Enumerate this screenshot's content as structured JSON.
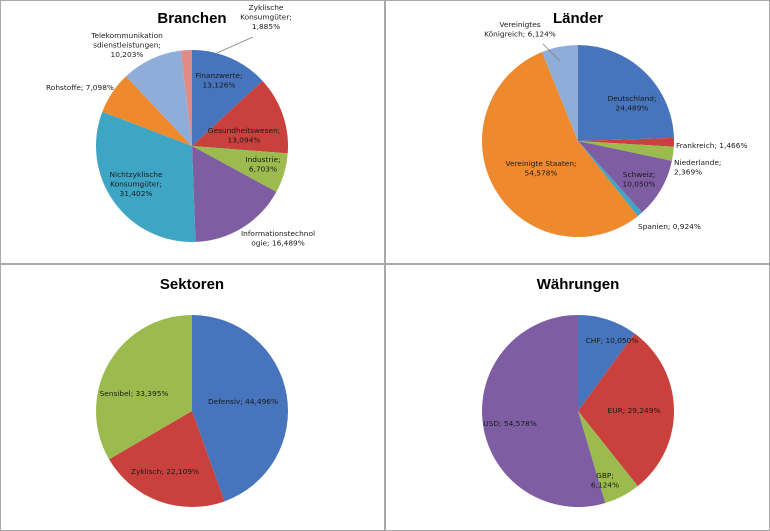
{
  "colors": {
    "blue": "#4674bd",
    "red": "#c9403c",
    "green": "#9bbb4e",
    "purple": "#7f5da3",
    "teal": "#3fa5c4",
    "orange": "#ef892e",
    "lightblue": "#8fadd9",
    "pink": "#df8c89"
  },
  "chart_data": [
    {
      "type": "pie",
      "title": "Branchen",
      "slices": [
        {
          "name": "Finanzwerte",
          "value": 13.126,
          "label": [
            "Finanzwerte;",
            "13,126%"
          ],
          "color": "#4674bd"
        },
        {
          "name": "Gesundheitswesen",
          "value": 13.094,
          "label": [
            "Gesundheitswesen;",
            "13,094%"
          ],
          "color": "#c9403c"
        },
        {
          "name": "Industrie",
          "value": 6.703,
          "label": [
            "Industrie;",
            "6,703%"
          ],
          "color": "#9bbb4e"
        },
        {
          "name": "Informationstechnologie",
          "value": 16.489,
          "label": [
            "Informationstechnol",
            "ogie; 16,489%"
          ],
          "color": "#7f5da3"
        },
        {
          "name": "Nichtzyklische Konsumgüter",
          "value": 31.402,
          "label": [
            "Nichtzyklische",
            "Konsumgüter;",
            "31,402%"
          ],
          "color": "#3fa5c4"
        },
        {
          "name": "Rohstoffe",
          "value": 7.098,
          "label": [
            "Rohstoffe; 7,098%"
          ],
          "color": "#ef892e"
        },
        {
          "name": "Telekommunikationsdienstleistungen",
          "value": 10.203,
          "label": [
            "Telekommunikation",
            "sdienstleistungen;",
            "10,203%"
          ],
          "color": "#8fadd9"
        },
        {
          "name": "Zyklische Konsumgüter",
          "value": 1.885,
          "label": [
            "Zyklische",
            "Konsumgüter;",
            "1,885%"
          ],
          "color": "#df8c89"
        }
      ]
    },
    {
      "type": "pie",
      "title": "Länder",
      "slices": [
        {
          "name": "Deutschland",
          "value": 24.489,
          "label": [
            "Deutschland;",
            "24,489%"
          ],
          "color": "#4674bd"
        },
        {
          "name": "Frankreich",
          "value": 1.466,
          "label": [
            "Frankreich; 1,466%"
          ],
          "color": "#c9403c"
        },
        {
          "name": "Niederlande",
          "value": 2.369,
          "label": [
            "Niederlande;",
            "2,369%"
          ],
          "color": "#9bbb4e"
        },
        {
          "name": "Schweiz",
          "value": 10.05,
          "label": [
            "Schweiz;",
            "10,050%"
          ],
          "color": "#7f5da3"
        },
        {
          "name": "Spanien",
          "value": 0.924,
          "label": [
            "Spanien; 0,924%"
          ],
          "color": "#3fa5c4"
        },
        {
          "name": "Vereinigte Staaten",
          "value": 54.578,
          "label": [
            "Vereinigte Staaten;",
            "54,578%"
          ],
          "color": "#ef892e"
        },
        {
          "name": "Vereinigtes Königreich",
          "value": 6.124,
          "label": [
            "Vereinigtes",
            "Königreich; 6,124%"
          ],
          "color": "#8fadd9"
        }
      ]
    },
    {
      "type": "pie",
      "title": "Sektoren",
      "slices": [
        {
          "name": "Defensiv",
          "value": 44.496,
          "label": [
            "Defensiv; 44,496%"
          ],
          "color": "#4674bd"
        },
        {
          "name": "Zyklisch",
          "value": 22.109,
          "label": [
            "Zyklisch; 22,109%"
          ],
          "color": "#c9403c"
        },
        {
          "name": "Sensibel",
          "value": 33.395,
          "label": [
            "Sensibel; 33,395%"
          ],
          "color": "#9bbb4e"
        }
      ]
    },
    {
      "type": "pie",
      "title": "Währungen",
      "slices": [
        {
          "name": "CHF",
          "value": 10.05,
          "label": [
            "CHF; 10,050%"
          ],
          "color": "#4674bd"
        },
        {
          "name": "EUR",
          "value": 29.249,
          "label": [
            "EUR; 29,249%"
          ],
          "color": "#c9403c"
        },
        {
          "name": "GBP",
          "value": 6.124,
          "label": [
            "GBP;",
            "6,124%"
          ],
          "color": "#9bbb4e"
        },
        {
          "name": "USD",
          "value": 54.578,
          "label": [
            "USD; 54,578%"
          ],
          "color": "#7f5da3"
        }
      ]
    }
  ]
}
